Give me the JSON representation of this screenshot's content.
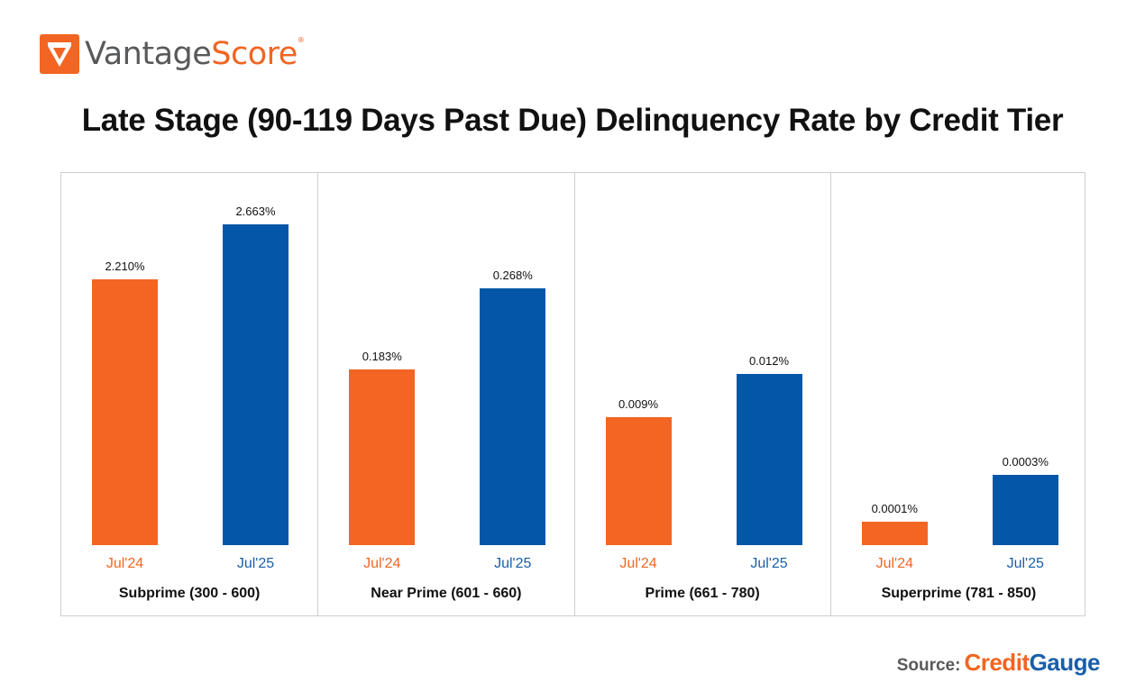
{
  "brand": {
    "name_part1": "Vantage",
    "name_part2": "Score",
    "registered_mark": "®",
    "icon": "vantagescore-check-logo-icon",
    "colors": {
      "orange": "#f26522",
      "gray": "#58595b"
    }
  },
  "source": {
    "label": "Source:",
    "name_part1": "Credit",
    "name_part2": "Gauge",
    "icon": "gauge-icon"
  },
  "chart_data": {
    "type": "bar",
    "title": "Late Stage (90-119 Days Past Due) Delinquency Rate by Credit Tier",
    "xlabel": "",
    "ylabel": "",
    "grid": false,
    "legend": "none",
    "note": "Each credit tier panel uses its own independent vertical scale; no y-axis shown.",
    "colors": {
      "Jul'24": "#f26522",
      "Jul'25": "#0457a8"
    },
    "series_names": [
      "Jul'24",
      "Jul'25"
    ],
    "panels": [
      {
        "tier": "Subprime (300 - 600)",
        "categories": [
          "Jul'24",
          "Jul'25"
        ],
        "values": [
          2.21,
          2.663
        ],
        "labels": [
          "2.210%",
          "2.663%"
        ],
        "unit": "%"
      },
      {
        "tier": "Near Prime (601 - 660)",
        "categories": [
          "Jul'24",
          "Jul'25"
        ],
        "values": [
          0.183,
          0.268
        ],
        "labels": [
          "0.183%",
          "0.268%"
        ],
        "unit": "%"
      },
      {
        "tier": "Prime (661 - 780)",
        "categories": [
          "Jul'24",
          "Jul'25"
        ],
        "values": [
          0.009,
          0.012
        ],
        "labels": [
          "0.009%",
          "0.012%"
        ],
        "unit": "%"
      },
      {
        "tier": "Superprime (781 - 850)",
        "categories": [
          "Jul'24",
          "Jul'25"
        ],
        "values": [
          0.0001,
          0.0003
        ],
        "labels": [
          "0.0001%",
          "0.0003%"
        ],
        "unit": "%"
      }
    ]
  }
}
